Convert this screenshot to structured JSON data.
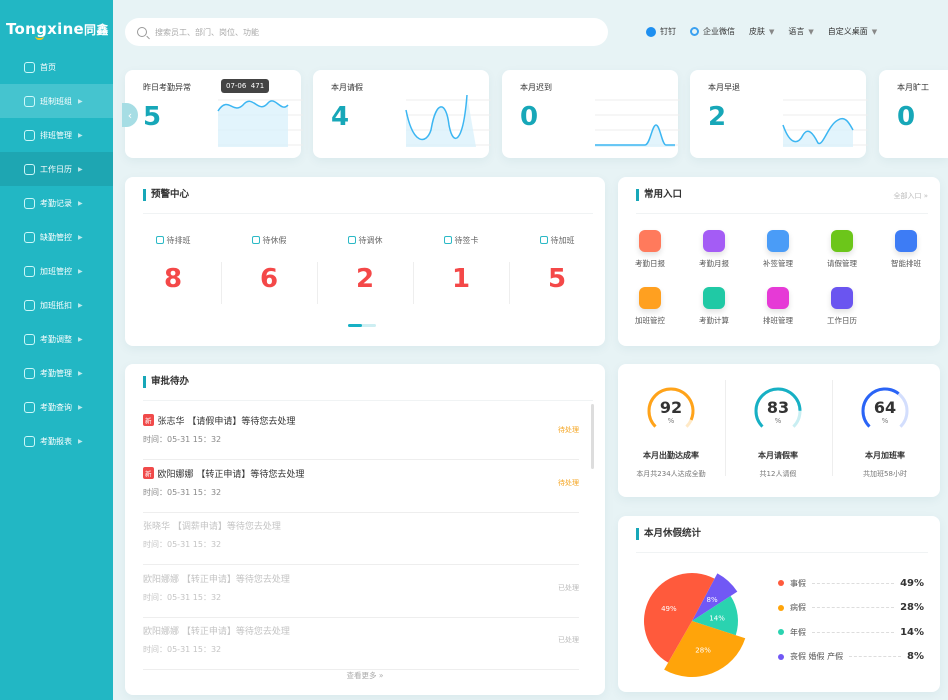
{
  "app": {
    "logo": "Tongxine",
    "logo_cn": "同鑫"
  },
  "sidebar": {
    "items": [
      {
        "label": "首页",
        "icon": "home-icon",
        "arrow": false
      },
      {
        "label": "班制班组",
        "icon": "org-icon",
        "arrow": true
      },
      {
        "label": "排班管理",
        "icon": "schedule-icon",
        "arrow": true
      },
      {
        "label": "工作日历",
        "icon": "calendar-icon",
        "arrow": true
      },
      {
        "label": "考勤记录",
        "icon": "record-icon",
        "arrow": true
      },
      {
        "label": "缺勤管控",
        "icon": "lock-icon",
        "arrow": true
      },
      {
        "label": "加班管控",
        "icon": "overtime-icon",
        "arrow": true
      },
      {
        "label": "加班抵扣",
        "icon": "deduct-icon",
        "arrow": true
      },
      {
        "label": "考勤调整",
        "icon": "adjust-icon",
        "arrow": true
      },
      {
        "label": "考勤管理",
        "icon": "user-icon",
        "arrow": true
      },
      {
        "label": "考勤查询",
        "icon": "query-icon",
        "arrow": true
      },
      {
        "label": "考勤报表",
        "icon": "report-icon",
        "arrow": true
      }
    ]
  },
  "header": {
    "search_placeholder": "搜索员工、部门、岗位、功能",
    "dingtalk": "钉钉",
    "wecom": "企业微信",
    "skin": "皮肤",
    "language": "语言",
    "custom_desktop": "自定义桌面"
  },
  "stats": [
    {
      "label": "昨日考勤异常",
      "value": "5"
    },
    {
      "label": "本月请假",
      "value": "4"
    },
    {
      "label": "本月迟到",
      "value": "0"
    },
    {
      "label": "本月早退",
      "value": "2"
    },
    {
      "label": "本月旷工",
      "value": "0"
    }
  ],
  "tooltip": {
    "date": "07-06",
    "value": "471"
  },
  "warning": {
    "title": "预警中心",
    "items": [
      {
        "label": "待排班",
        "value": "8"
      },
      {
        "label": "待休假",
        "value": "6"
      },
      {
        "label": "待调休",
        "value": "2"
      },
      {
        "label": "待签卡",
        "value": "1"
      },
      {
        "label": "待加班",
        "value": "5"
      }
    ]
  },
  "entries": {
    "title": "常用入口",
    "all": "全部入口 »",
    "items": [
      {
        "label": "考勤日报",
        "color": "#ff7a5c"
      },
      {
        "label": "考勤月报",
        "color": "#a45cf5"
      },
      {
        "label": "补签管理",
        "color": "#4a9cf7"
      },
      {
        "label": "请假管理",
        "color": "#6cc61a"
      },
      {
        "label": "智能排班",
        "color": "#3d7cf5"
      },
      {
        "label": "加班管控",
        "color": "#ffa020"
      },
      {
        "label": "考勤计算",
        "color": "#20c9a5"
      },
      {
        "label": "排班管理",
        "color": "#e63ad6"
      },
      {
        "label": "工作日历",
        "color": "#6a55f0"
      }
    ]
  },
  "approval": {
    "title": "审批待办",
    "more": "查看更多 »",
    "new_badge": "新",
    "items": [
      {
        "text": "张志华 【请假申请】等待您去处理",
        "time": "时间：05-31 15：32",
        "status": "待处理",
        "new": true,
        "done": false
      },
      {
        "text": "欧阳娜娜 【转正申请】等待您去处理",
        "time": "时间：05-31 15：32",
        "status": "待处理",
        "new": true,
        "done": false
      },
      {
        "text": "张晓华 【调薪申请】等待您去处理",
        "time": "时间：05-31 15：32",
        "status": "",
        "new": false,
        "done": true
      },
      {
        "text": "欧阳娜娜 【转正申请】等待您去处理",
        "time": "时间：05-31 15：32",
        "status": "已处理",
        "new": false,
        "done": true
      },
      {
        "text": "欧阳娜娜 【转正申请】等待您去处理",
        "time": "时间：05-31 15：32",
        "status": "已处理",
        "new": false,
        "done": true
      }
    ]
  },
  "rates": [
    {
      "value": 92,
      "unit": "%",
      "label": "本月出勤达成率",
      "sub": "本月共234人达成全勤",
      "color": "#ffa31a",
      "track": "#ffe9c6"
    },
    {
      "value": 83,
      "unit": "%",
      "label": "本月请假率",
      "sub": "共12人请假",
      "color": "#17b0c4",
      "track": "#c9eef2"
    },
    {
      "value": 64,
      "unit": "%",
      "label": "本月加班率",
      "sub": "共加班58小时",
      "color": "#2a64f6",
      "track": "#d3defd"
    }
  ],
  "chart_data": {
    "type": "pie",
    "title": "本月休假统计",
    "categories": [
      "事假",
      "病假",
      "年假",
      "丧假 婚假 产假"
    ],
    "values": [
      49,
      28,
      14,
      8
    ],
    "labels": [
      "49%",
      "28%",
      "14%",
      "8%"
    ],
    "colors": [
      "#ff5a3c",
      "#ffa40a",
      "#2ad3b0",
      "#7158f5"
    ]
  }
}
